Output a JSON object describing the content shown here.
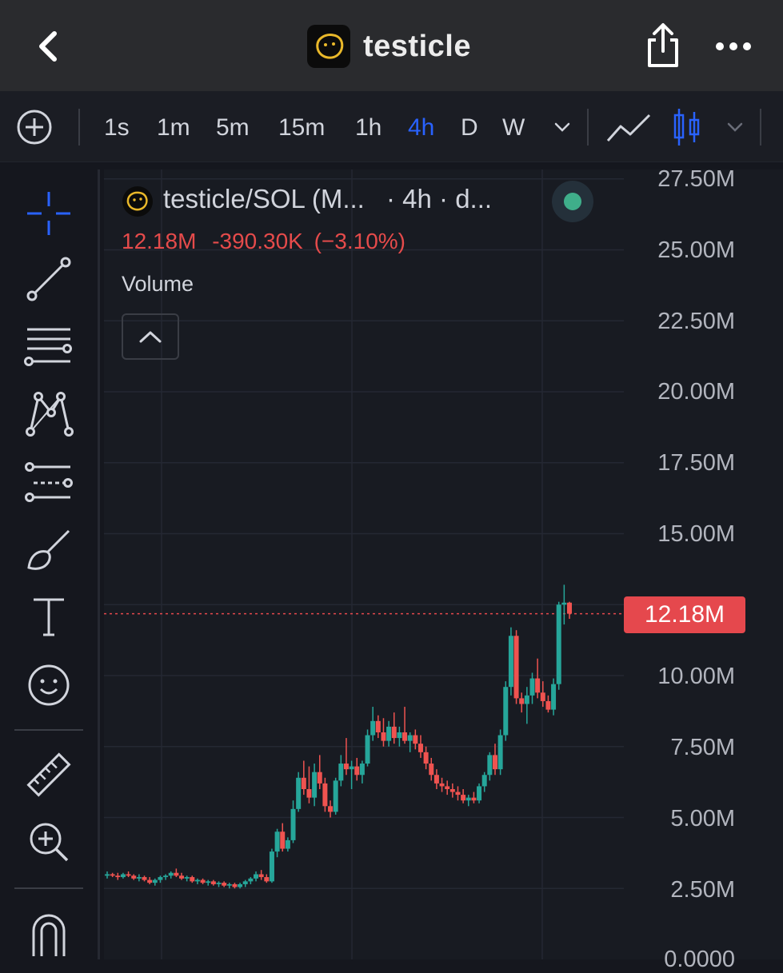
{
  "header": {
    "title": "testicle",
    "back_icon": "chevron-left-icon",
    "share_icon": "share-icon",
    "more_icon": "more-icon"
  },
  "toolbar": {
    "intervals": [
      "1s",
      "1m",
      "5m",
      "15m",
      "1h",
      "4h",
      "D",
      "W"
    ],
    "active_interval": "4h",
    "accent_color": "#2962ff"
  },
  "sidebar": {
    "tools": [
      "crosshair-icon",
      "trendline-icon",
      "fib-lines-icon",
      "pattern-icon",
      "forecast-icon",
      "brush-icon",
      "text-icon",
      "emoji-icon",
      "ruler-icon",
      "zoom-in-icon",
      "magnet-icon"
    ]
  },
  "legend": {
    "symbol": "testicle/SOL (M...",
    "meta": "· 4h · d...",
    "price": "12.18M",
    "change": "-390.30K",
    "change_pct": "(−3.10%)",
    "volume_label": "Volume",
    "status_color": "#3fae8a"
  },
  "price_axis": {
    "labels": [
      "27.50M",
      "25.00M",
      "22.50M",
      "20.00M",
      "17.50M",
      "15.00M",
      "10.00M",
      "7.50M",
      "5.00M",
      "2.50M",
      "0.0000"
    ]
  },
  "last_price": {
    "label": "12.18M",
    "color": "#e5484d"
  },
  "chart_data": {
    "type": "candlestick",
    "ylim": [
      0,
      27.5
    ],
    "unit": "M",
    "up_color": "#26a69a",
    "down_color": "#ef5350",
    "last_price": 12.18,
    "candles": [
      {
        "o": 2.95,
        "h": 3.1,
        "l": 2.85,
        "c": 3.0
      },
      {
        "o": 3.0,
        "h": 3.05,
        "l": 2.9,
        "c": 2.95
      },
      {
        "o": 2.95,
        "h": 3.05,
        "l": 2.8,
        "c": 2.9
      },
      {
        "o": 2.9,
        "h": 3.05,
        "l": 2.85,
        "c": 3.0
      },
      {
        "o": 3.0,
        "h": 3.1,
        "l": 2.9,
        "c": 2.95
      },
      {
        "o": 2.95,
        "h": 3.0,
        "l": 2.8,
        "c": 2.85
      },
      {
        "o": 2.85,
        "h": 3.0,
        "l": 2.75,
        "c": 2.9
      },
      {
        "o": 2.9,
        "h": 2.95,
        "l": 2.75,
        "c": 2.8
      },
      {
        "o": 2.8,
        "h": 2.9,
        "l": 2.65,
        "c": 2.7
      },
      {
        "o": 2.7,
        "h": 2.85,
        "l": 2.6,
        "c": 2.8
      },
      {
        "o": 2.8,
        "h": 2.95,
        "l": 2.7,
        "c": 2.9
      },
      {
        "o": 2.9,
        "h": 3.0,
        "l": 2.8,
        "c": 2.95
      },
      {
        "o": 2.95,
        "h": 3.1,
        "l": 2.85,
        "c": 3.05
      },
      {
        "o": 3.05,
        "h": 3.2,
        "l": 2.9,
        "c": 2.95
      },
      {
        "o": 2.95,
        "h": 3.05,
        "l": 2.8,
        "c": 2.85
      },
      {
        "o": 2.85,
        "h": 2.95,
        "l": 2.75,
        "c": 2.9
      },
      {
        "o": 2.9,
        "h": 2.95,
        "l": 2.7,
        "c": 2.75
      },
      {
        "o": 2.75,
        "h": 2.85,
        "l": 2.65,
        "c": 2.8
      },
      {
        "o": 2.8,
        "h": 2.85,
        "l": 2.65,
        "c": 2.7
      },
      {
        "o": 2.7,
        "h": 2.8,
        "l": 2.6,
        "c": 2.75
      },
      {
        "o": 2.75,
        "h": 2.8,
        "l": 2.6,
        "c": 2.65
      },
      {
        "o": 2.65,
        "h": 2.75,
        "l": 2.55,
        "c": 2.7
      },
      {
        "o": 2.7,
        "h": 2.75,
        "l": 2.55,
        "c": 2.6
      },
      {
        "o": 2.6,
        "h": 2.7,
        "l": 2.5,
        "c": 2.65
      },
      {
        "o": 2.65,
        "h": 2.7,
        "l": 2.5,
        "c": 2.55
      },
      {
        "o": 2.55,
        "h": 2.7,
        "l": 2.5,
        "c": 2.65
      },
      {
        "o": 2.65,
        "h": 2.8,
        "l": 2.55,
        "c": 2.75
      },
      {
        "o": 2.75,
        "h": 2.9,
        "l": 2.65,
        "c": 2.85
      },
      {
        "o": 2.85,
        "h": 3.1,
        "l": 2.75,
        "c": 3.0
      },
      {
        "o": 3.0,
        "h": 3.15,
        "l": 2.8,
        "c": 2.9
      },
      {
        "o": 2.9,
        "h": 3.0,
        "l": 2.7,
        "c": 2.75
      },
      {
        "o": 2.75,
        "h": 3.9,
        "l": 2.7,
        "c": 3.8
      },
      {
        "o": 3.8,
        "h": 4.6,
        "l": 3.6,
        "c": 4.5
      },
      {
        "o": 4.5,
        "h": 4.8,
        "l": 3.8,
        "c": 3.9
      },
      {
        "o": 3.9,
        "h": 4.3,
        "l": 3.8,
        "c": 4.2
      },
      {
        "o": 4.2,
        "h": 5.6,
        "l": 4.1,
        "c": 5.3
      },
      {
        "o": 5.3,
        "h": 6.6,
        "l": 5.2,
        "c": 6.4
      },
      {
        "o": 6.4,
        "h": 7.0,
        "l": 5.8,
        "c": 6.0
      },
      {
        "o": 6.0,
        "h": 6.8,
        "l": 5.5,
        "c": 5.7
      },
      {
        "o": 5.7,
        "h": 6.9,
        "l": 5.4,
        "c": 6.6
      },
      {
        "o": 6.6,
        "h": 7.2,
        "l": 6.0,
        "c": 6.2
      },
      {
        "o": 6.2,
        "h": 6.4,
        "l": 5.2,
        "c": 5.4
      },
      {
        "o": 5.4,
        "h": 5.6,
        "l": 5.0,
        "c": 5.2
      },
      {
        "o": 5.2,
        "h": 6.4,
        "l": 5.1,
        "c": 6.3
      },
      {
        "o": 6.3,
        "h": 7.2,
        "l": 6.1,
        "c": 6.9
      },
      {
        "o": 6.9,
        "h": 7.8,
        "l": 6.5,
        "c": 6.7
      },
      {
        "o": 6.7,
        "h": 7.0,
        "l": 6.0,
        "c": 6.8
      },
      {
        "o": 6.8,
        "h": 7.1,
        "l": 6.3,
        "c": 6.5
      },
      {
        "o": 6.5,
        "h": 7.0,
        "l": 6.2,
        "c": 6.9
      },
      {
        "o": 6.9,
        "h": 8.1,
        "l": 6.8,
        "c": 7.9
      },
      {
        "o": 7.9,
        "h": 8.9,
        "l": 7.7,
        "c": 8.4
      },
      {
        "o": 8.4,
        "h": 8.6,
        "l": 7.8,
        "c": 8.0
      },
      {
        "o": 8.0,
        "h": 8.5,
        "l": 7.5,
        "c": 7.7
      },
      {
        "o": 7.7,
        "h": 8.4,
        "l": 7.5,
        "c": 8.2
      },
      {
        "o": 8.2,
        "h": 8.7,
        "l": 7.6,
        "c": 7.8
      },
      {
        "o": 7.8,
        "h": 8.2,
        "l": 7.5,
        "c": 8.0
      },
      {
        "o": 8.0,
        "h": 8.9,
        "l": 7.6,
        "c": 7.7
      },
      {
        "o": 7.7,
        "h": 8.0,
        "l": 7.3,
        "c": 7.9
      },
      {
        "o": 7.9,
        "h": 8.1,
        "l": 7.4,
        "c": 7.6
      },
      {
        "o": 7.6,
        "h": 7.9,
        "l": 7.1,
        "c": 7.3
      },
      {
        "o": 7.3,
        "h": 7.5,
        "l": 6.7,
        "c": 6.9
      },
      {
        "o": 6.9,
        "h": 7.1,
        "l": 6.3,
        "c": 6.5
      },
      {
        "o": 6.5,
        "h": 6.7,
        "l": 6.0,
        "c": 6.2
      },
      {
        "o": 6.2,
        "h": 6.4,
        "l": 5.9,
        "c": 6.1
      },
      {
        "o": 6.1,
        "h": 6.3,
        "l": 5.8,
        "c": 6.0
      },
      {
        "o": 6.0,
        "h": 6.2,
        "l": 5.7,
        "c": 5.9
      },
      {
        "o": 5.9,
        "h": 6.1,
        "l": 5.6,
        "c": 5.8
      },
      {
        "o": 5.8,
        "h": 6.0,
        "l": 5.5,
        "c": 5.6
      },
      {
        "o": 5.6,
        "h": 5.8,
        "l": 5.4,
        "c": 5.7
      },
      {
        "o": 5.7,
        "h": 5.9,
        "l": 5.5,
        "c": 5.6
      },
      {
        "o": 5.6,
        "h": 6.2,
        "l": 5.5,
        "c": 6.1
      },
      {
        "o": 6.1,
        "h": 6.6,
        "l": 5.9,
        "c": 6.5
      },
      {
        "o": 6.5,
        "h": 7.3,
        "l": 6.3,
        "c": 7.2
      },
      {
        "o": 7.2,
        "h": 7.6,
        "l": 6.5,
        "c": 6.7
      },
      {
        "o": 6.7,
        "h": 8.1,
        "l": 6.5,
        "c": 7.9
      },
      {
        "o": 7.9,
        "h": 9.8,
        "l": 7.7,
        "c": 9.6
      },
      {
        "o": 9.6,
        "h": 11.7,
        "l": 9.3,
        "c": 11.4
      },
      {
        "o": 11.4,
        "h": 11.6,
        "l": 9.0,
        "c": 9.2
      },
      {
        "o": 9.2,
        "h": 9.4,
        "l": 8.7,
        "c": 9.0
      },
      {
        "o": 9.0,
        "h": 9.6,
        "l": 8.3,
        "c": 9.3
      },
      {
        "o": 9.3,
        "h": 10.1,
        "l": 9.0,
        "c": 9.9
      },
      {
        "o": 9.9,
        "h": 10.6,
        "l": 9.2,
        "c": 9.4
      },
      {
        "o": 9.4,
        "h": 9.8,
        "l": 8.9,
        "c": 9.1
      },
      {
        "o": 9.1,
        "h": 9.3,
        "l": 8.7,
        "c": 8.8
      },
      {
        "o": 8.8,
        "h": 9.9,
        "l": 8.6,
        "c": 9.7
      },
      {
        "o": 9.7,
        "h": 12.6,
        "l": 9.5,
        "c": 12.5
      },
      {
        "o": 12.5,
        "h": 13.2,
        "l": 11.8,
        "c": 12.57
      },
      {
        "o": 12.57,
        "h": 12.6,
        "l": 12.0,
        "c": 12.18
      }
    ]
  }
}
